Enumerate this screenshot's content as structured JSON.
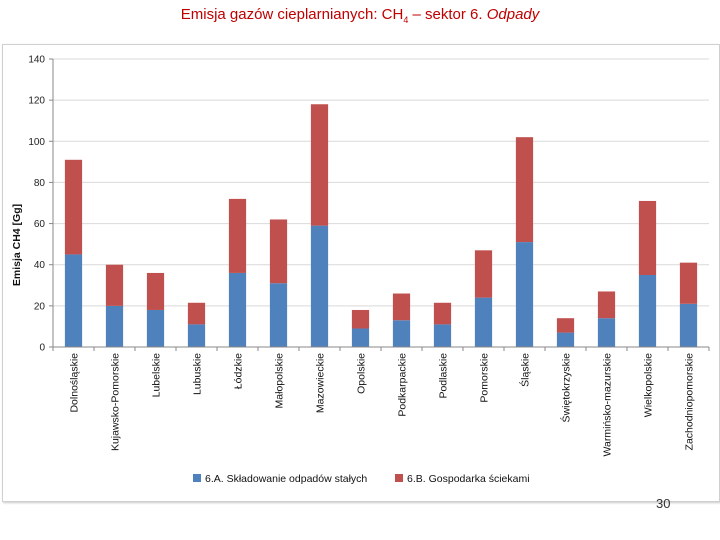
{
  "slide": {
    "title_main": "Emisja gazów cieplarnianych: CH",
    "title_sub": "4",
    "title_rest": " – sektor 6. ",
    "title_italic": "Odpady",
    "page_number": "30"
  },
  "colors": {
    "title": "#c00000",
    "series_a": "#4f81bd",
    "series_b": "#c0504d"
  },
  "chart_data": {
    "type": "bar",
    "stacked": true,
    "ylabel": "Emisja CH4 [Gg]",
    "xlabel": "",
    "ylim": [
      0,
      140
    ],
    "yticks": [
      0,
      20,
      40,
      60,
      80,
      100,
      120,
      140
    ],
    "grid": true,
    "legend_position": "bottom",
    "categories": [
      "Dolnośląskie",
      "Kujawsko-Pomorskie",
      "Lubelskie",
      "Lubuskie",
      "Łódzkie",
      "Małopolskie",
      "Mazowieckie",
      "Opolskie",
      "Podkarpackie",
      "Podlaskie",
      "Pomorskie",
      "Śląskie",
      "Świętokrzyskie",
      "Warmińsko-mazurskie",
      "Wielkopolskie",
      "Zachodniopomorskie"
    ],
    "series": [
      {
        "name": "6.A. Składowanie odpadów stałych",
        "color": "#4f81bd",
        "values": [
          45,
          20,
          18,
          11,
          36,
          31,
          59,
          9,
          13,
          11,
          24,
          51,
          7,
          14,
          35,
          21
        ]
      },
      {
        "name": "6.B. Gospodarka ściekami",
        "color": "#c0504d",
        "values": [
          46,
          20,
          18,
          10.5,
          36,
          31,
          59,
          9,
          13,
          10.5,
          23,
          51,
          7,
          13,
          36,
          20
        ]
      }
    ]
  }
}
